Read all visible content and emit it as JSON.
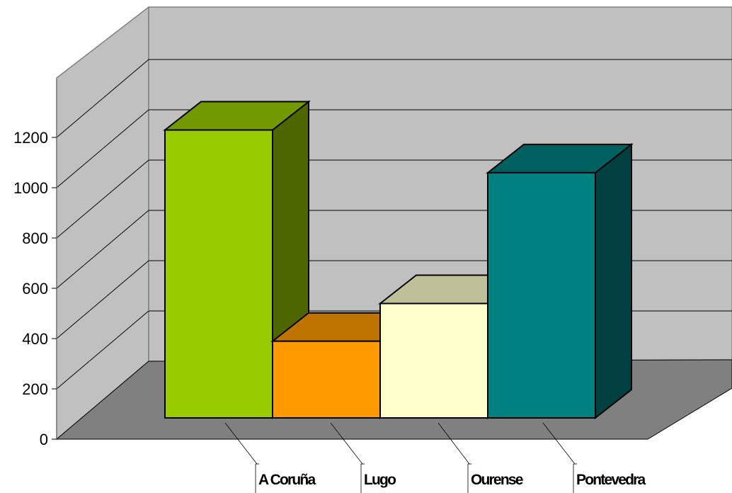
{
  "chart_data": {
    "type": "bar",
    "title": "",
    "xlabel": "",
    "ylabel": "",
    "categories": [
      "A Coruña",
      "Lugo",
      "Ourense",
      "Pontevedra"
    ],
    "values": [
      1145,
      305,
      455,
      975
    ],
    "ylim": [
      0,
      1200
    ],
    "yticks": [
      0,
      200,
      400,
      600,
      800,
      1000,
      1200
    ],
    "grid": true,
    "legend": "none",
    "colors": {
      "A Coruña": {
        "front": "#99CC00",
        "top": "#739900",
        "side": "#4D6600"
      },
      "Lugo": {
        "front": "#FF9900",
        "top": "#BF7300",
        "side": "#804D00"
      },
      "Ourense": {
        "front": "#FFFFCC",
        "top": "#BFBF99",
        "side": "#808066"
      },
      "Pontevedra": {
        "front": "#008080",
        "top": "#006060",
        "side": "#004040"
      },
      "back_wall": "#C0C0C0",
      "side_wall": "#C0C0C0",
      "floor": "#808080",
      "gridline": "#000000"
    }
  }
}
